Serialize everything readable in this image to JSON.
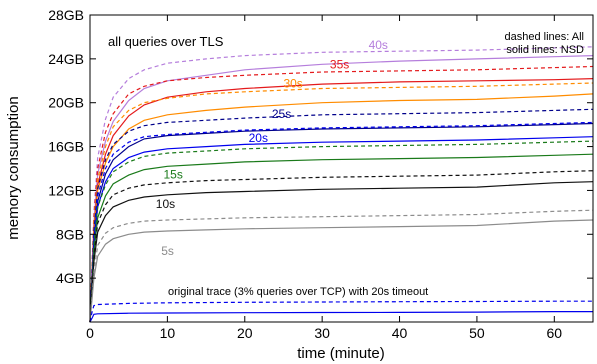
{
  "chart_data": {
    "type": "line",
    "xlabel": "time (minute)",
    "ylabel": "memory consumption",
    "xlim": [
      0,
      65
    ],
    "ylim": [
      0,
      28
    ],
    "x_ticks": [
      0,
      10,
      20,
      30,
      40,
      50,
      60
    ],
    "x_tick_labels": [
      "0",
      "10",
      "20",
      "30",
      "40",
      "50",
      "60"
    ],
    "y_ticks": [
      4,
      8,
      12,
      16,
      20,
      24,
      28
    ],
    "y_tick_labels": [
      "4GB",
      "8GB",
      "12GB",
      "16GB",
      "20GB",
      "24GB",
      "28GB"
    ],
    "grid": false,
    "annotations": {
      "scenario": "all queries over TLS",
      "legend_dashed": "dashed lines: All",
      "legend_solid": "solid lines: NSD",
      "original": "original trace (3% queries over TCP) with 20s timeout"
    },
    "series": [
      {
        "name": "40s",
        "dash": false,
        "color": "#b57edc",
        "label_x": 36,
        "label_y": 24.9,
        "points": [
          [
            0,
            0
          ],
          [
            0.5,
            9
          ],
          [
            1,
            13.5
          ],
          [
            2,
            16.5
          ],
          [
            3,
            18.3
          ],
          [
            5,
            20.2
          ],
          [
            7,
            21.3
          ],
          [
            10,
            22
          ],
          [
            15,
            22.5
          ],
          [
            20,
            23
          ],
          [
            30,
            23.5
          ],
          [
            40,
            23.8
          ],
          [
            50,
            24
          ],
          [
            60,
            24.2
          ],
          [
            65,
            24.3
          ]
        ]
      },
      {
        "name": "40s",
        "dash": true,
        "color": "#b57edc",
        "points": [
          [
            0,
            0
          ],
          [
            0.5,
            10
          ],
          [
            1,
            15
          ],
          [
            2,
            18.5
          ],
          [
            3,
            20.5
          ],
          [
            5,
            22.2
          ],
          [
            7,
            23
          ],
          [
            10,
            23.6
          ],
          [
            15,
            24
          ],
          [
            20,
            24.3
          ],
          [
            30,
            24.6
          ],
          [
            40,
            24.7
          ],
          [
            50,
            24.8
          ],
          [
            60,
            25
          ],
          [
            65,
            25.1
          ]
        ]
      },
      {
        "name": "35s",
        "dash": false,
        "color": "#e41a1c",
        "label_x": 31,
        "label_y": 23.1,
        "points": [
          [
            0,
            0
          ],
          [
            0.5,
            8.5
          ],
          [
            1,
            12.5
          ],
          [
            2,
            15.3
          ],
          [
            3,
            17
          ],
          [
            5,
            18.8
          ],
          [
            7,
            19.8
          ],
          [
            10,
            20.5
          ],
          [
            15,
            21
          ],
          [
            20,
            21.3
          ],
          [
            30,
            21.7
          ],
          [
            40,
            21.9
          ],
          [
            50,
            22
          ],
          [
            60,
            22.1
          ],
          [
            65,
            22.2
          ]
        ]
      },
      {
        "name": "35s",
        "dash": true,
        "color": "#e41a1c",
        "points": [
          [
            0,
            0
          ],
          [
            0.5,
            9.5
          ],
          [
            1,
            14
          ],
          [
            2,
            17.3
          ],
          [
            3,
            19
          ],
          [
            5,
            20.8
          ],
          [
            7,
            21.5
          ],
          [
            10,
            22
          ],
          [
            15,
            22.3
          ],
          [
            20,
            22.5
          ],
          [
            30,
            22.8
          ],
          [
            40,
            22.9
          ],
          [
            50,
            23
          ],
          [
            60,
            23.2
          ],
          [
            65,
            23.3
          ]
        ]
      },
      {
        "name": "30s",
        "dash": false,
        "color": "#ff8c00",
        "label_x": 25,
        "label_y": 21.4,
        "points": [
          [
            0,
            0
          ],
          [
            0.5,
            8
          ],
          [
            1,
            12
          ],
          [
            2,
            14.5
          ],
          [
            3,
            16
          ],
          [
            5,
            17.6
          ],
          [
            7,
            18.4
          ],
          [
            10,
            18.9
          ],
          [
            15,
            19.3
          ],
          [
            20,
            19.6
          ],
          [
            30,
            20
          ],
          [
            40,
            20.2
          ],
          [
            50,
            20.3
          ],
          [
            60,
            20.6
          ],
          [
            65,
            20.8
          ]
        ]
      },
      {
        "name": "30s",
        "dash": true,
        "color": "#ff8c00",
        "points": [
          [
            0,
            0
          ],
          [
            0.5,
            9
          ],
          [
            1,
            13
          ],
          [
            2,
            16
          ],
          [
            3,
            17.8
          ],
          [
            5,
            19.3
          ],
          [
            7,
            20
          ],
          [
            10,
            20.4
          ],
          [
            15,
            20.8
          ],
          [
            20,
            21
          ],
          [
            30,
            21.3
          ],
          [
            40,
            21.4
          ],
          [
            50,
            21.5
          ],
          [
            60,
            21.7
          ],
          [
            65,
            21.8
          ]
        ]
      },
      {
        "name": "25s",
        "dash": false,
        "color": "#00008b",
        "label_x": 23.5,
        "label_y": 18.6,
        "points": [
          [
            0,
            0
          ],
          [
            0.5,
            7.5
          ],
          [
            1,
            11
          ],
          [
            2,
            13.5
          ],
          [
            3,
            14.8
          ],
          [
            5,
            16
          ],
          [
            7,
            16.7
          ],
          [
            10,
            17
          ],
          [
            15,
            17.2
          ],
          [
            20,
            17.4
          ],
          [
            30,
            17.6
          ],
          [
            40,
            17.7
          ],
          [
            50,
            17.8
          ],
          [
            60,
            18
          ],
          [
            65,
            18.1
          ]
        ]
      },
      {
        "name": "25s",
        "dash": true,
        "color": "#00008b",
        "points": [
          [
            0,
            0
          ],
          [
            0.5,
            8.3
          ],
          [
            1,
            12.2
          ],
          [
            2,
            14.8
          ],
          [
            3,
            16.2
          ],
          [
            5,
            17.4
          ],
          [
            7,
            17.9
          ],
          [
            10,
            18.2
          ],
          [
            15,
            18.4
          ],
          [
            20,
            18.6
          ],
          [
            30,
            18.9
          ],
          [
            40,
            19
          ],
          [
            50,
            19.1
          ],
          [
            60,
            19.3
          ],
          [
            65,
            19.4
          ]
        ]
      },
      {
        "name": "20s",
        "dash": false,
        "color": "#0000ee",
        "label_x": 20.5,
        "label_y": 16.4,
        "points": [
          [
            0,
            0
          ],
          [
            0.5,
            7
          ],
          [
            1,
            10.5
          ],
          [
            2,
            12.8
          ],
          [
            3,
            14
          ],
          [
            5,
            15
          ],
          [
            7,
            15.5
          ],
          [
            10,
            15.8
          ],
          [
            15,
            16
          ],
          [
            20,
            16.2
          ],
          [
            30,
            16.4
          ],
          [
            40,
            16.5
          ],
          [
            50,
            16.6
          ],
          [
            60,
            16.8
          ],
          [
            65,
            16.9
          ]
        ]
      },
      {
        "name": "20s",
        "dash": true,
        "color": "#0000ee",
        "points": [
          [
            0,
            0
          ],
          [
            0.5,
            7.8
          ],
          [
            1,
            11.5
          ],
          [
            2,
            14
          ],
          [
            3,
            15.3
          ],
          [
            5,
            16.4
          ],
          [
            7,
            16.9
          ],
          [
            10,
            17.1
          ],
          [
            15,
            17.3
          ],
          [
            20,
            17.5
          ],
          [
            30,
            17.7
          ],
          [
            40,
            17.8
          ],
          [
            50,
            17.9
          ],
          [
            60,
            18.1
          ],
          [
            65,
            18.2
          ]
        ]
      },
      {
        "name": "15s",
        "dash": false,
        "color": "#1a7a1a",
        "label_x": 9.5,
        "label_y": 13.1,
        "points": [
          [
            0,
            0
          ],
          [
            0.5,
            6.3
          ],
          [
            1,
            9.5
          ],
          [
            2,
            11.5
          ],
          [
            3,
            12.6
          ],
          [
            5,
            13.4
          ],
          [
            7,
            13.9
          ],
          [
            10,
            14.2
          ],
          [
            15,
            14.4
          ],
          [
            20,
            14.6
          ],
          [
            30,
            14.8
          ],
          [
            40,
            14.9
          ],
          [
            50,
            15
          ],
          [
            60,
            15.2
          ],
          [
            65,
            15.3
          ]
        ]
      },
      {
        "name": "15s",
        "dash": true,
        "color": "#1a7a1a",
        "points": [
          [
            0,
            0
          ],
          [
            0.5,
            7
          ],
          [
            1,
            10.5
          ],
          [
            2,
            12.5
          ],
          [
            3,
            13.7
          ],
          [
            5,
            14.6
          ],
          [
            7,
            15.1
          ],
          [
            10,
            15.4
          ],
          [
            15,
            15.6
          ],
          [
            20,
            15.8
          ],
          [
            30,
            16
          ],
          [
            40,
            16.1
          ],
          [
            50,
            16.2
          ],
          [
            60,
            16.4
          ],
          [
            65,
            16.5
          ]
        ]
      },
      {
        "name": "10s",
        "dash": false,
        "color": "#111111",
        "label_x": 8.5,
        "label_y": 10.4,
        "points": [
          [
            0,
            0
          ],
          [
            0.5,
            5.5
          ],
          [
            1,
            8.2
          ],
          [
            2,
            9.7
          ],
          [
            3,
            10.5
          ],
          [
            5,
            11.1
          ],
          [
            7,
            11.4
          ],
          [
            10,
            11.6
          ],
          [
            15,
            11.8
          ],
          [
            20,
            11.9
          ],
          [
            30,
            12.1
          ],
          [
            40,
            12.2
          ],
          [
            50,
            12.3
          ],
          [
            60,
            12.7
          ],
          [
            65,
            12.8
          ]
        ]
      },
      {
        "name": "10s",
        "dash": true,
        "color": "#111111",
        "points": [
          [
            0,
            0
          ],
          [
            0.5,
            6
          ],
          [
            1,
            9
          ],
          [
            2,
            10.7
          ],
          [
            3,
            11.6
          ],
          [
            5,
            12.2
          ],
          [
            7,
            12.5
          ],
          [
            10,
            12.7
          ],
          [
            15,
            12.9
          ],
          [
            20,
            13
          ],
          [
            30,
            13.2
          ],
          [
            40,
            13.3
          ],
          [
            50,
            13.4
          ],
          [
            60,
            13.7
          ],
          [
            65,
            13.8
          ]
        ]
      },
      {
        "name": "5s",
        "dash": false,
        "color": "#8c8c8c",
        "label_x": 9.2,
        "label_y": 6.1,
        "points": [
          [
            0,
            0
          ],
          [
            0.5,
            4
          ],
          [
            1,
            6
          ],
          [
            2,
            7.1
          ],
          [
            3,
            7.6
          ],
          [
            5,
            8
          ],
          [
            7,
            8.2
          ],
          [
            10,
            8.3
          ],
          [
            15,
            8.4
          ],
          [
            20,
            8.5
          ],
          [
            30,
            8.6
          ],
          [
            40,
            8.7
          ],
          [
            50,
            8.8
          ],
          [
            60,
            9.2
          ],
          [
            65,
            9.3
          ]
        ]
      },
      {
        "name": "5s",
        "dash": true,
        "color": "#8c8c8c",
        "points": [
          [
            0,
            0
          ],
          [
            0.5,
            4.6
          ],
          [
            1,
            7
          ],
          [
            2,
            8.1
          ],
          [
            3,
            8.6
          ],
          [
            5,
            9
          ],
          [
            7,
            9.2
          ],
          [
            10,
            9.3
          ],
          [
            15,
            9.4
          ],
          [
            20,
            9.5
          ],
          [
            30,
            9.6
          ],
          [
            40,
            9.7
          ],
          [
            50,
            9.8
          ],
          [
            60,
            10.1
          ],
          [
            65,
            10.2
          ]
        ]
      },
      {
        "name": "original trace",
        "dash": false,
        "color": "#0000ee",
        "points": [
          [
            0,
            0
          ],
          [
            0.3,
            0.4
          ],
          [
            0.5,
            0.7
          ],
          [
            1,
            0.75
          ],
          [
            5,
            0.8
          ],
          [
            10,
            0.82
          ],
          [
            20,
            0.85
          ],
          [
            30,
            0.87
          ],
          [
            40,
            0.88
          ],
          [
            50,
            0.9
          ],
          [
            60,
            0.95
          ],
          [
            65,
            0.95
          ]
        ]
      },
      {
        "name": "original trace",
        "dash": true,
        "color": "#0000ee",
        "points": [
          [
            0,
            0
          ],
          [
            0.3,
            1
          ],
          [
            0.5,
            1.5
          ],
          [
            1,
            1.6
          ],
          [
            5,
            1.7
          ],
          [
            10,
            1.75
          ],
          [
            20,
            1.8
          ],
          [
            30,
            1.82
          ],
          [
            40,
            1.85
          ],
          [
            50,
            1.87
          ],
          [
            60,
            1.9
          ],
          [
            65,
            1.9
          ]
        ]
      }
    ]
  }
}
